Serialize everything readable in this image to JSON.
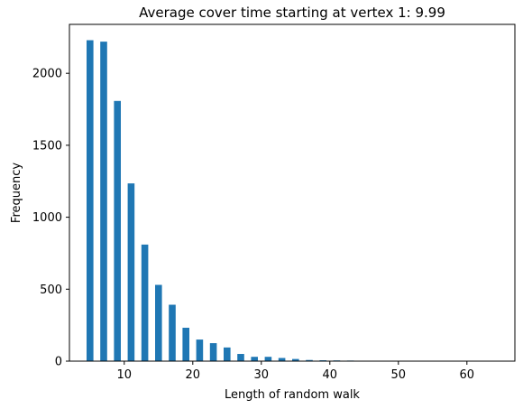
{
  "chart_data": {
    "type": "bar",
    "title": "Average cover time starting at vertex 1: 9.99",
    "xlabel": "Length of random walk",
    "ylabel": "Frequency",
    "xlim": [
      2,
      67
    ],
    "ylim": [
      0,
      2340
    ],
    "xticks": [
      10,
      20,
      30,
      40,
      50,
      60
    ],
    "yticks": [
      0,
      500,
      1000,
      1500,
      2000
    ],
    "bar_width": 1.0,
    "color": "#1f77b4",
    "x": [
      5,
      7,
      9,
      11,
      13,
      15,
      17,
      19,
      21,
      23,
      25,
      27,
      29,
      31,
      33,
      35,
      37,
      39,
      41,
      43,
      45,
      47,
      49,
      51,
      53,
      55,
      57,
      59,
      61,
      63,
      65
    ],
    "values": [
      2230,
      2220,
      1808,
      1235,
      810,
      530,
      392,
      232,
      150,
      125,
      95,
      50,
      30,
      30,
      22,
      15,
      8,
      6,
      5,
      4,
      2,
      1,
      1,
      1,
      0,
      0,
      0,
      0,
      0,
      0,
      1
    ]
  }
}
